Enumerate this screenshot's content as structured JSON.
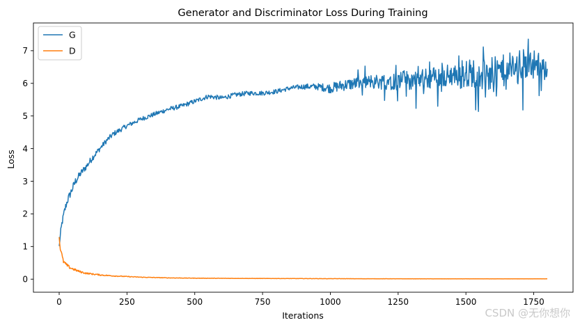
{
  "chart_data": {
    "type": "line",
    "title": "Generator and Discriminator Loss During Training",
    "xlabel": "Iterations",
    "ylabel": "Loss",
    "xlim": [
      -95,
      1895
    ],
    "ylim": [
      -0.4,
      7.85
    ],
    "x_ticks": [
      0,
      250,
      500,
      750,
      1000,
      1250,
      1500,
      1750
    ],
    "y_ticks": [
      0,
      1,
      2,
      3,
      4,
      5,
      6,
      7
    ],
    "legend_position": "top-left",
    "series": [
      {
        "name": "G",
        "color": "#1f77b4",
        "x": [
          0,
          5,
          10,
          20,
          30,
          45,
          60,
          80,
          100,
          125,
          150,
          175,
          200,
          250,
          300,
          350,
          400,
          450,
          500,
          550,
          600,
          650,
          700,
          750,
          800,
          850,
          900,
          950,
          1000,
          1050,
          1100,
          1150,
          1200,
          1250,
          1300,
          1350,
          1400,
          1450,
          1500,
          1550,
          1600,
          1650,
          1700,
          1750,
          1800
        ],
        "values": [
          1.0,
          1.4,
          1.7,
          2.1,
          2.4,
          2.7,
          3.0,
          3.25,
          3.45,
          3.75,
          4.0,
          4.25,
          4.45,
          4.7,
          4.9,
          5.05,
          5.2,
          5.3,
          5.45,
          5.6,
          5.55,
          5.65,
          5.7,
          5.7,
          5.75,
          5.85,
          5.9,
          5.9,
          5.85,
          5.95,
          6.0,
          6.05,
          6.05,
          6.1,
          6.1,
          6.15,
          6.2,
          6.25,
          6.3,
          6.35,
          6.35,
          6.4,
          6.55,
          6.6,
          6.5
        ],
        "noise_amplitude": [
          0.05,
          0.1,
          0.1,
          0.12,
          0.12,
          0.12,
          0.12,
          0.1,
          0.1,
          0.1,
          0.08,
          0.08,
          0.08,
          0.07,
          0.07,
          0.07,
          0.07,
          0.07,
          0.07,
          0.07,
          0.07,
          0.07,
          0.07,
          0.07,
          0.07,
          0.07,
          0.08,
          0.1,
          0.15,
          0.18,
          0.2,
          0.22,
          0.25,
          0.3,
          0.3,
          0.3,
          0.35,
          0.35,
          0.45,
          0.45,
          0.45,
          0.5,
          0.5,
          0.45,
          0.3
        ]
      },
      {
        "name": "D",
        "color": "#ff7f0e",
        "x": [
          0,
          3,
          8,
          15,
          25,
          40,
          60,
          80,
          100,
          150,
          200,
          250,
          300,
          400,
          500,
          600,
          800,
          1000,
          1200,
          1400,
          1600,
          1800
        ],
        "values": [
          1.3,
          1.0,
          0.8,
          0.55,
          0.45,
          0.35,
          0.28,
          0.22,
          0.18,
          0.13,
          0.1,
          0.08,
          0.06,
          0.04,
          0.03,
          0.025,
          0.02,
          0.015,
          0.012,
          0.01,
          0.01,
          0.01
        ],
        "noise_amplitude": [
          0.05,
          0.08,
          0.08,
          0.06,
          0.05,
          0.04,
          0.035,
          0.03,
          0.025,
          0.02,
          0.015,
          0.012,
          0.01,
          0.008,
          0.006,
          0.005,
          0.004,
          0.004,
          0.003,
          0.003,
          0.003,
          0.003
        ]
      }
    ]
  },
  "watermark": "CSDN @无你想你"
}
